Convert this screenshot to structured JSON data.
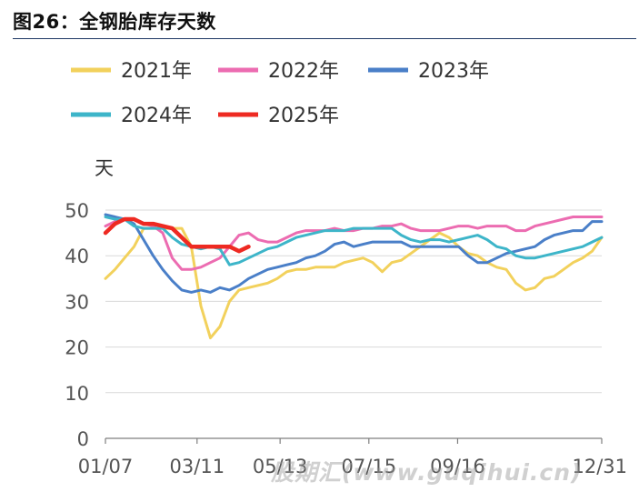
{
  "title": "图26：全钢胎库存天数",
  "watermark": "股期汇(www.guqihui.cn)",
  "chart_data": {
    "type": "line",
    "ylabel": "天",
    "ylim": [
      0,
      50
    ],
    "yticks": [
      0,
      10,
      20,
      30,
      40,
      50
    ],
    "xlim": [
      1,
      53
    ],
    "xtick_positions": [
      1,
      10.6,
      19.3,
      28.6,
      37.9,
      53
    ],
    "xtick_labels": [
      "01/07",
      "03/11",
      "05/13",
      "07/15",
      "09/16",
      "12/31"
    ],
    "grid": true,
    "legend_position": "top",
    "series": [
      {
        "name": "2021年",
        "color": "#f2d15c",
        "x": [
          1,
          2,
          3,
          4,
          5,
          6,
          7,
          8,
          9,
          10,
          11,
          12,
          13,
          14,
          15,
          16,
          17,
          18,
          19,
          20,
          21,
          22,
          23,
          24,
          25,
          26,
          27,
          28,
          29,
          30,
          31,
          32,
          33,
          34,
          35,
          36,
          37,
          38,
          39,
          40,
          41,
          42,
          43,
          44,
          45,
          46,
          47,
          48,
          49,
          50,
          51,
          52,
          53
        ],
        "values": [
          35,
          37,
          39.5,
          42,
          46,
          46,
          46,
          46,
          46,
          42,
          29,
          22,
          24.5,
          30,
          32.5,
          33,
          33.5,
          34,
          35,
          36.5,
          37,
          37,
          37.5,
          37.5,
          37.5,
          38.5,
          39,
          39.5,
          38.5,
          36.5,
          38.5,
          39,
          40.5,
          42,
          43.5,
          45,
          44,
          42,
          40.5,
          40,
          38.5,
          37.5,
          37,
          34,
          32.5,
          33,
          35,
          35.5,
          37,
          38.5,
          39.5,
          41,
          44
        ]
      },
      {
        "name": "2022年",
        "color": "#ec6cb1",
        "x": [
          1,
          2,
          3,
          4,
          5,
          6,
          7,
          8,
          9,
          10,
          11,
          12,
          13,
          14,
          15,
          16,
          17,
          18,
          19,
          20,
          21,
          22,
          23,
          24,
          25,
          26,
          27,
          28,
          29,
          30,
          31,
          32,
          33,
          34,
          35,
          36,
          37,
          38,
          39,
          40,
          41,
          42,
          43,
          44,
          45,
          46,
          47,
          48,
          49,
          50,
          51,
          52,
          53
        ],
        "values": [
          46.5,
          47.5,
          48,
          48,
          47,
          46.5,
          45,
          39.5,
          37,
          37,
          37.5,
          38.5,
          39.5,
          42,
          44.5,
          45,
          43.5,
          43,
          43,
          44,
          45,
          45.5,
          45.5,
          45.5,
          46,
          45.5,
          45.5,
          46,
          46,
          46.5,
          46.5,
          47,
          46,
          45.5,
          45.5,
          45.5,
          46,
          46.5,
          46.5,
          46,
          46.5,
          46.5,
          46.5,
          45.5,
          45.5,
          46.5,
          47,
          47.5,
          48,
          48.5,
          48.5,
          48.5,
          48.5
        ]
      },
      {
        "name": "2023年",
        "color": "#4a7fc8",
        "x": [
          1,
          2,
          3,
          4,
          5,
          6,
          7,
          8,
          9,
          10,
          11,
          12,
          13,
          14,
          15,
          16,
          17,
          18,
          19,
          20,
          21,
          22,
          23,
          24,
          25,
          26,
          27,
          28,
          29,
          30,
          31,
          32,
          33,
          34,
          35,
          36,
          37,
          38,
          39,
          40,
          41,
          42,
          43,
          44,
          45,
          46,
          47,
          48,
          49,
          50,
          51,
          52,
          53
        ],
        "values": [
          49,
          48.5,
          48,
          47,
          43.5,
          40,
          37,
          34.5,
          32.5,
          32,
          32.5,
          32,
          33,
          32.5,
          33.5,
          35,
          36,
          37,
          37.5,
          38,
          38.5,
          39.5,
          40,
          41,
          42.5,
          43,
          42,
          42.5,
          43,
          43,
          43,
          43,
          42,
          42,
          42,
          42,
          42,
          42,
          40,
          38.5,
          38.5,
          39.5,
          40.5,
          41,
          41.5,
          42,
          43.5,
          44.5,
          45,
          45.5,
          45.5,
          47.5,
          47.5
        ]
      },
      {
        "name": "2024年",
        "color": "#3db5c9",
        "x": [
          1,
          2,
          3,
          4,
          5,
          6,
          7,
          8,
          9,
          10,
          11,
          12,
          13,
          14,
          15,
          16,
          17,
          18,
          19,
          20,
          21,
          22,
          23,
          24,
          25,
          26,
          27,
          28,
          29,
          30,
          31,
          32,
          33,
          34,
          35,
          36,
          37,
          38,
          39,
          40,
          41,
          42,
          43,
          44,
          45,
          46,
          47,
          48,
          49,
          50,
          51,
          52,
          53
        ],
        "values": [
          48.5,
          48,
          48,
          46.5,
          46,
          46,
          46,
          44,
          42.5,
          42,
          41.5,
          42,
          41.5,
          38,
          38.5,
          39.5,
          40.5,
          41.5,
          42,
          43,
          44,
          44.5,
          45,
          45.5,
          45.5,
          45.5,
          46,
          46,
          46,
          46,
          46,
          44.5,
          43.5,
          43,
          43.5,
          43.5,
          43,
          43.5,
          44,
          44.5,
          43.5,
          42,
          41.5,
          40,
          39.5,
          39.5,
          40,
          40.5,
          41,
          41.5,
          42,
          43,
          44
        ]
      },
      {
        "name": "2025年",
        "color": "#ee2a22",
        "x": [
          1,
          2,
          3,
          4,
          5,
          6,
          7,
          8,
          9,
          10,
          11,
          12,
          13,
          14,
          15,
          16
        ],
        "values": [
          45,
          47,
          48,
          48,
          47,
          47,
          46.5,
          46,
          44,
          42,
          42,
          42,
          42,
          42,
          41,
          42
        ]
      }
    ]
  }
}
